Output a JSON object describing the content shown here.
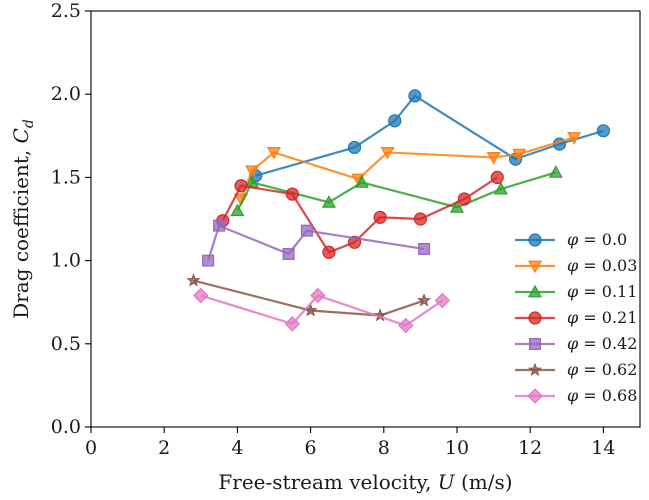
{
  "chart_data": {
    "type": "line",
    "xlabel": "Free-stream velocity, U (m/s)",
    "ylabel": "Drag coefficient, C_d",
    "xlim": [
      0,
      15
    ],
    "ylim": [
      0,
      2.5
    ],
    "xticks": [
      "0",
      "2",
      "4",
      "6",
      "8",
      "10",
      "12",
      "14"
    ],
    "yticks": [
      "0.0",
      "0.5",
      "1.0",
      "1.5",
      "2.0",
      "2.5"
    ],
    "grid": false,
    "legend_position": "lower-right",
    "series": [
      {
        "name": "φ = 0.0",
        "color": "#1f77b4",
        "marker": "circle",
        "x": [
          4.5,
          7.2,
          8.3,
          8.85,
          11.6,
          12.8,
          14.0
        ],
        "y": [
          1.51,
          1.68,
          1.84,
          1.99,
          1.61,
          1.7,
          1.78
        ]
      },
      {
        "name": "φ = 0.03",
        "color": "#ff7f0e",
        "marker": "triangle-down",
        "x": [
          4.1,
          4.4,
          5.0,
          7.3,
          8.1,
          11.0,
          11.7,
          13.2
        ],
        "y": [
          1.37,
          1.54,
          1.65,
          1.49,
          1.65,
          1.62,
          1.64,
          1.74
        ]
      },
      {
        "name": "φ = 0.11",
        "color": "#2ca02c",
        "marker": "triangle-up",
        "x": [
          4.0,
          4.4,
          6.5,
          7.4,
          10.0,
          11.2,
          12.7
        ],
        "y": [
          1.3,
          1.47,
          1.35,
          1.47,
          1.32,
          1.43,
          1.53
        ]
      },
      {
        "name": "φ = 0.21",
        "color": "#d62728",
        "marker": "circle",
        "x": [
          3.6,
          4.1,
          5.5,
          6.5,
          7.2,
          7.9,
          9.0,
          10.2,
          11.1
        ],
        "y": [
          1.24,
          1.45,
          1.4,
          1.05,
          1.11,
          1.26,
          1.25,
          1.37,
          1.5
        ]
      },
      {
        "name": "φ = 0.42",
        "color": "#9467bd",
        "marker": "square",
        "x": [
          3.2,
          3.5,
          5.4,
          5.9,
          9.1
        ],
        "y": [
          1.0,
          1.21,
          1.04,
          1.18,
          1.07
        ]
      },
      {
        "name": "φ = 0.62",
        "color": "#8c564b",
        "marker": "star",
        "x": [
          2.8,
          6.0,
          7.9,
          9.1
        ],
        "y": [
          0.88,
          0.7,
          0.67,
          0.76
        ]
      },
      {
        "name": "φ = 0.68",
        "color": "#e377c2",
        "marker": "diamond",
        "x": [
          3.0,
          5.5,
          6.2,
          8.6,
          9.6
        ],
        "y": [
          0.79,
          0.62,
          0.79,
          0.61,
          0.76
        ]
      }
    ]
  }
}
